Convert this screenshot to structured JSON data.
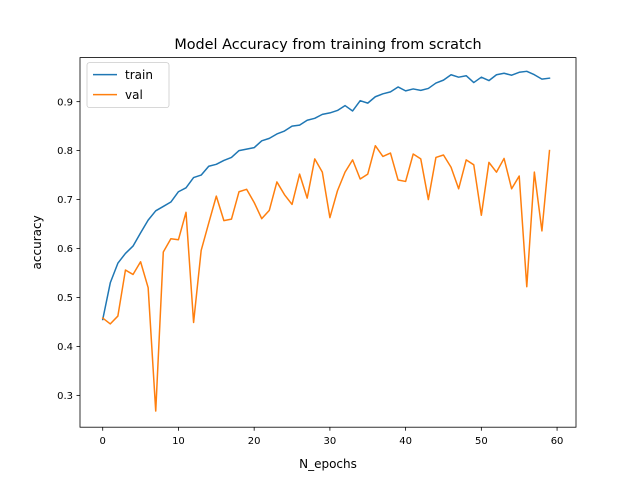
{
  "chart_data": {
    "type": "line",
    "title": "Model Accuracy from training from scratch",
    "xlabel": "N_epochs",
    "ylabel": "accuracy",
    "xlim": [
      -3,
      62.5
    ],
    "ylim": [
      0.235,
      0.99
    ],
    "x_ticks": [
      0,
      10,
      20,
      30,
      40,
      50,
      60
    ],
    "y_ticks": [
      0.3,
      0.4,
      0.5,
      0.6,
      0.7,
      0.8,
      0.9
    ],
    "grid": false,
    "legend_position": "top-left",
    "x": [
      0,
      1,
      2,
      3,
      4,
      5,
      6,
      7,
      8,
      9,
      10,
      11,
      12,
      13,
      14,
      15,
      16,
      17,
      18,
      19,
      20,
      21,
      22,
      23,
      24,
      25,
      26,
      27,
      28,
      29,
      30,
      31,
      32,
      33,
      34,
      35,
      36,
      37,
      38,
      39,
      40,
      41,
      42,
      43,
      44,
      45,
      46,
      47,
      48,
      49,
      50,
      51,
      52,
      53,
      54,
      55,
      56,
      57,
      58,
      59
    ],
    "series": [
      {
        "name": "train",
        "color": "#1f77b4",
        "values": [
          0.455,
          0.53,
          0.57,
          0.59,
          0.605,
          0.632,
          0.658,
          0.677,
          0.686,
          0.695,
          0.716,
          0.724,
          0.745,
          0.75,
          0.768,
          0.772,
          0.78,
          0.786,
          0.8,
          0.803,
          0.806,
          0.82,
          0.825,
          0.834,
          0.84,
          0.85,
          0.852,
          0.862,
          0.866,
          0.874,
          0.877,
          0.882,
          0.892,
          0.881,
          0.902,
          0.897,
          0.91,
          0.916,
          0.92,
          0.93,
          0.922,
          0.926,
          0.923,
          0.927,
          0.938,
          0.944,
          0.955,
          0.95,
          0.953,
          0.939,
          0.95,
          0.943,
          0.955,
          0.958,
          0.954,
          0.96,
          0.962,
          0.955,
          0.946,
          0.948
        ]
      },
      {
        "name": "val",
        "color": "#ff7f0e",
        "values": [
          0.458,
          0.446,
          0.462,
          0.556,
          0.547,
          0.573,
          0.52,
          0.268,
          0.593,
          0.62,
          0.618,
          0.674,
          0.449,
          0.596,
          0.652,
          0.707,
          0.657,
          0.66,
          0.716,
          0.721,
          0.694,
          0.661,
          0.678,
          0.736,
          0.71,
          0.69,
          0.752,
          0.703,
          0.783,
          0.756,
          0.663,
          0.718,
          0.756,
          0.781,
          0.742,
          0.752,
          0.81,
          0.788,
          0.795,
          0.74,
          0.737,
          0.793,
          0.783,
          0.7,
          0.786,
          0.791,
          0.766,
          0.722,
          0.781,
          0.771,
          0.668,
          0.776,
          0.756,
          0.784,
          0.722,
          0.748,
          0.522,
          0.756,
          0.636,
          0.8
        ]
      }
    ]
  }
}
